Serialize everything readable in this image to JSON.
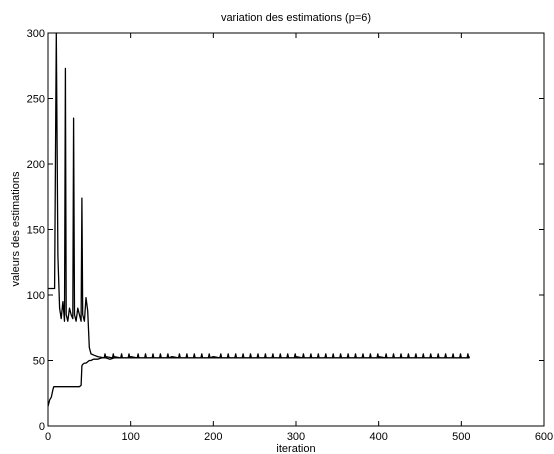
{
  "chart_data": {
    "type": "line",
    "title": "variation des estimations (p=6)",
    "xlabel": "iteration",
    "ylabel": "valeurs des estimations",
    "xlim": [
      0,
      600
    ],
    "ylim": [
      0,
      300
    ],
    "xticks": [
      0,
      100,
      200,
      300,
      400,
      500,
      600
    ],
    "yticks": [
      0,
      50,
      100,
      150,
      200,
      250,
      300
    ],
    "grid": false,
    "legend": "none",
    "series": [
      {
        "color": "#000000",
        "x": [
          0,
          8,
          10,
          12,
          14,
          16,
          18,
          20,
          21,
          22,
          24,
          26,
          28,
          30,
          31,
          32,
          34,
          36,
          38,
          40,
          41,
          42,
          44,
          46,
          48,
          50,
          52,
          56,
          60,
          70,
          80,
          100,
          150,
          200,
          300,
          400,
          510
        ],
        "y": [
          105,
          105,
          300,
          130,
          90,
          82,
          95,
          80,
          273,
          85,
          80,
          90,
          85,
          82,
          235,
          85,
          80,
          90,
          85,
          80,
          174,
          85,
          80,
          98,
          88,
          60,
          55,
          54,
          53,
          53,
          53,
          53,
          53,
          53,
          53,
          53,
          53
        ]
      },
      {
        "color": "#000000",
        "x": [
          0,
          2,
          4,
          6,
          7,
          38,
          40,
          41,
          42,
          44,
          46,
          48,
          50,
          52,
          55,
          60,
          65,
          70,
          75,
          80,
          100,
          150,
          200,
          300,
          400,
          510
        ],
        "y": [
          15,
          20,
          22,
          28,
          30,
          30,
          31,
          46,
          47,
          48,
          48,
          49,
          50,
          50,
          51,
          51,
          52,
          52,
          51,
          52,
          52,
          52,
          52,
          52,
          52,
          52
        ]
      }
    ],
    "oscillation": {
      "from": 55,
      "to": 510,
      "period": 9,
      "low": 52,
      "high": 55
    }
  }
}
